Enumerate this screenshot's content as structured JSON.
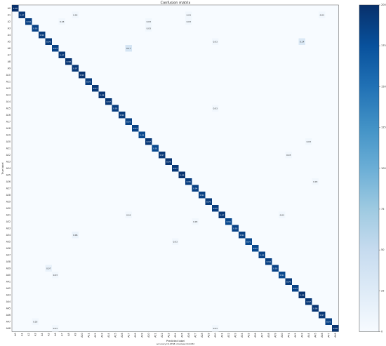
{
  "chart_data": {
    "type": "heatmap",
    "title": "Confusion matrix",
    "xlabel": "Predicted label",
    "subtitle": "accuracy=0.9768; misclass=0.0232",
    "ylabel": "True label",
    "categories": [
      "A0",
      "A1",
      "A2",
      "A3",
      "A4",
      "A5",
      "A6",
      "A7",
      "A8",
      "A9",
      "A10",
      "A11",
      "A12",
      "A13",
      "A14",
      "A15",
      "A16",
      "A17",
      "A18",
      "A19",
      "A20",
      "A21",
      "A22",
      "A23",
      "A24",
      "A25",
      "A26",
      "A27",
      "A28",
      "A29",
      "A30",
      "A31",
      "A32",
      "A33",
      "A34",
      "A35",
      "A36",
      "A37",
      "A38",
      "A39",
      "A40",
      "A41",
      "A42",
      "A43",
      "A44",
      "A45",
      "A46",
      "A47",
      "A48"
    ],
    "cells": [
      {
        "true": "A0",
        "pred": "A0",
        "value": 1.0,
        "label": "1.00"
      },
      {
        "true": "A1",
        "pred": "A1",
        "value": 0.97,
        "label": "0.97"
      },
      {
        "true": "A2",
        "pred": "A2",
        "value": 0.94,
        "label": "0.94"
      },
      {
        "true": "A3",
        "pred": "A3",
        "value": 0.93,
        "label": "0.93"
      },
      {
        "true": "A4",
        "pred": "A4",
        "value": 0.96,
        "label": "0.96"
      },
      {
        "true": "A5",
        "pred": "A5",
        "value": 0.96,
        "label": "0.96"
      },
      {
        "true": "A6",
        "pred": "A6",
        "value": 0.93,
        "label": "0.93"
      },
      {
        "true": "A7",
        "pred": "A7",
        "value": 0.97,
        "label": "0.97"
      },
      {
        "true": "A8",
        "pred": "A8",
        "value": 0.98,
        "label": "0.98"
      },
      {
        "true": "A9",
        "pred": "A9",
        "value": 0.97,
        "label": "0.97"
      },
      {
        "true": "A10",
        "pred": "A10",
        "value": 0.99,
        "label": "0.99"
      },
      {
        "true": "A11",
        "pred": "A11",
        "value": 0.95,
        "label": "0.95"
      },
      {
        "true": "A12",
        "pred": "A12",
        "value": 0.97,
        "label": "0.97"
      },
      {
        "true": "A13",
        "pred": "A13",
        "value": 0.98,
        "label": "0.98"
      },
      {
        "true": "A14",
        "pred": "A14",
        "value": 0.97,
        "label": "0.97"
      },
      {
        "true": "A15",
        "pred": "A15",
        "value": 0.95,
        "label": "0.95"
      },
      {
        "true": "A16",
        "pred": "A16",
        "value": 0.96,
        "label": "0.96"
      },
      {
        "true": "A17",
        "pred": "A17",
        "value": 0.93,
        "label": "0.93"
      },
      {
        "true": "A18",
        "pred": "A18",
        "value": 0.93,
        "label": "0.93"
      },
      {
        "true": "A19",
        "pred": "A19",
        "value": 0.91,
        "label": "0.91"
      },
      {
        "true": "A20",
        "pred": "A20",
        "value": 0.97,
        "label": "0.97"
      },
      {
        "true": "A21",
        "pred": "A21",
        "value": 0.91,
        "label": "0.91"
      },
      {
        "true": "A22",
        "pred": "A22",
        "value": 0.97,
        "label": "0.97"
      },
      {
        "true": "A23",
        "pred": "A23",
        "value": 0.98,
        "label": "0.98"
      },
      {
        "true": "A24",
        "pred": "A24",
        "value": 0.97,
        "label": "0.97"
      },
      {
        "true": "A25",
        "pred": "A25",
        "value": 0.99,
        "label": "0.99"
      },
      {
        "true": "A26",
        "pred": "A26",
        "value": 0.95,
        "label": "0.95"
      },
      {
        "true": "A27",
        "pred": "A27",
        "value": 0.94,
        "label": "0.94"
      },
      {
        "true": "A28",
        "pred": "A28",
        "value": 0.94,
        "label": "0.94"
      },
      {
        "true": "A29",
        "pred": "A29",
        "value": 0.96,
        "label": "0.96"
      },
      {
        "true": "A30",
        "pred": "A30",
        "value": 0.95,
        "label": "0.95"
      },
      {
        "true": "A31",
        "pred": "A31",
        "value": 0.97,
        "label": "0.97"
      },
      {
        "true": "A32",
        "pred": "A32",
        "value": 0.91,
        "label": "0.91"
      },
      {
        "true": "A33",
        "pred": "A33",
        "value": 0.93,
        "label": "0.93"
      },
      {
        "true": "A34",
        "pred": "A34",
        "value": 0.94,
        "label": "0.94"
      },
      {
        "true": "A35",
        "pred": "A35",
        "value": 0.91,
        "label": "0.91"
      },
      {
        "true": "A36",
        "pred": "A36",
        "value": 0.91,
        "label": "0.91"
      },
      {
        "true": "A37",
        "pred": "A37",
        "value": 0.93,
        "label": "0.93"
      },
      {
        "true": "A38",
        "pred": "A38",
        "value": 0.94,
        "label": "0.94"
      },
      {
        "true": "A39",
        "pred": "A39",
        "value": 0.93,
        "label": "0.93"
      },
      {
        "true": "A40",
        "pred": "A40",
        "value": 0.91,
        "label": "0.91"
      },
      {
        "true": "A41",
        "pred": "A41",
        "value": 0.96,
        "label": "0.96"
      },
      {
        "true": "A42",
        "pred": "A42",
        "value": 0.93,
        "label": "0.93"
      },
      {
        "true": "A43",
        "pred": "A43",
        "value": 0.99,
        "label": "0.99"
      },
      {
        "true": "A44",
        "pred": "A44",
        "value": 0.97,
        "label": "0.97"
      },
      {
        "true": "A45",
        "pred": "A45",
        "value": 0.98,
        "label": "0.98"
      },
      {
        "true": "A46",
        "pred": "A46",
        "value": 0.97,
        "label": "0.97"
      },
      {
        "true": "A47",
        "pred": "A47",
        "value": 0.93,
        "label": "0.93"
      },
      {
        "true": "A48",
        "pred": "A48",
        "value": 0.98,
        "label": "0.98"
      },
      {
        "true": "A1",
        "pred": "A9",
        "value": 0.03,
        "label": "0.03"
      },
      {
        "true": "A1",
        "pred": "A26",
        "value": 0.03,
        "label": "0.03"
      },
      {
        "true": "A1",
        "pred": "A46",
        "value": 0.03,
        "label": "0.03"
      },
      {
        "true": "A2",
        "pred": "A7",
        "value": 0.03,
        "label": "0.03"
      },
      {
        "true": "A2",
        "pred": "A20",
        "value": 0.03,
        "label": "0.03"
      },
      {
        "true": "A2",
        "pred": "A26",
        "value": 0.03,
        "label": "0.03"
      },
      {
        "true": "A3",
        "pred": "A20",
        "value": 0.03,
        "label": "0.03"
      },
      {
        "true": "A5",
        "pred": "A30",
        "value": 0.03,
        "label": "0.03"
      },
      {
        "true": "A5",
        "pred": "A43",
        "value": 0.14,
        "label": "0.14"
      },
      {
        "true": "A6",
        "pred": "A17",
        "value": 0.17,
        "label": "0.17"
      },
      {
        "true": "A15",
        "pred": "A30",
        "value": 0.03,
        "label": "0.03"
      },
      {
        "true": "A20",
        "pred": "A44",
        "value": 0.03,
        "label": "0.03"
      },
      {
        "true": "A22",
        "pred": "A41",
        "value": 0.03,
        "label": "0.03"
      },
      {
        "true": "A26",
        "pred": "A45",
        "value": 0.03,
        "label": "0.03"
      },
      {
        "true": "A31",
        "pred": "A17",
        "value": 0.03,
        "label": "0.03"
      },
      {
        "true": "A31",
        "pred": "A40",
        "value": 0.03,
        "label": "0.03"
      },
      {
        "true": "A32",
        "pred": "A27",
        "value": 0.03,
        "label": "0.03"
      },
      {
        "true": "A34",
        "pred": "A9",
        "value": 0.06,
        "label": "0.06"
      },
      {
        "true": "A35",
        "pred": "A24",
        "value": 0.03,
        "label": "0.03"
      },
      {
        "true": "A39",
        "pred": "A5",
        "value": 0.07,
        "label": "0.07"
      },
      {
        "true": "A40",
        "pred": "A6",
        "value": 0.03,
        "label": "0.03"
      },
      {
        "true": "A47",
        "pred": "A3",
        "value": 0.03,
        "label": "0.03"
      },
      {
        "true": "A48",
        "pred": "A6",
        "value": 0.03,
        "label": "0.03"
      },
      {
        "true": "A48",
        "pred": "A30",
        "value": 0.03,
        "label": "0.03"
      }
    ],
    "colorbar": {
      "lim": [
        0,
        200
      ],
      "ticks": [
        0,
        25,
        50,
        75,
        100,
        125,
        150,
        175,
        200
      ]
    }
  }
}
